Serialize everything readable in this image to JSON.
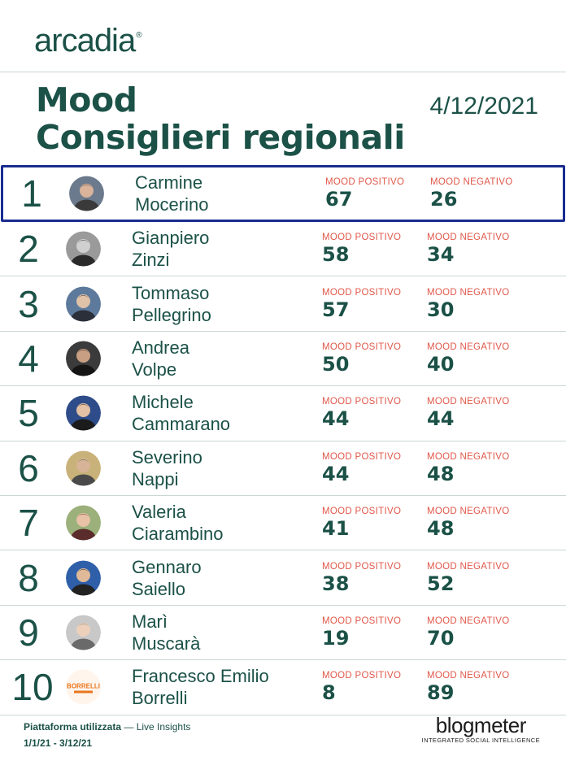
{
  "brand": {
    "name": "arcadia",
    "mark": "®"
  },
  "title": {
    "line1": "Mood",
    "line2": "Consiglieri regionali"
  },
  "date": "4/12/2021",
  "labels": {
    "positive": "MOOD POSITIVO",
    "negative": "MOOD NEGATIVO"
  },
  "colors": {
    "primary": "#1b5147",
    "label": "#e0584a",
    "highlight": "#1a2c8f",
    "rule": "#c9d8d4"
  },
  "rows": [
    {
      "rank": "1",
      "first": "Carmine",
      "last": "Mocerino",
      "positive": "67",
      "negative": "26",
      "avatar": "portrait-photo"
    },
    {
      "rank": "2",
      "first": "Gianpiero",
      "last": "Zinzi",
      "positive": "58",
      "negative": "34",
      "avatar": "portrait-photo-bw"
    },
    {
      "rank": "3",
      "first": "Tommaso",
      "last": "Pellegrino",
      "positive": "57",
      "negative": "30",
      "avatar": "portrait-photo"
    },
    {
      "rank": "4",
      "first": "Andrea",
      "last": "Volpe",
      "positive": "50",
      "negative": "40",
      "avatar": "portrait-photo"
    },
    {
      "rank": "5",
      "first": "Michele",
      "last": "Cammarano",
      "positive": "44",
      "negative": "44",
      "avatar": "portrait-photo"
    },
    {
      "rank": "6",
      "first": "Severino",
      "last": "Nappi",
      "positive": "44",
      "negative": "48",
      "avatar": "portrait-photo"
    },
    {
      "rank": "7",
      "first": "Valeria",
      "last": "Ciarambino",
      "positive": "41",
      "negative": "48",
      "avatar": "portrait-photo"
    },
    {
      "rank": "8",
      "first": "Gennaro",
      "last": "Saiello",
      "positive": "38",
      "negative": "52",
      "avatar": "portrait-photo"
    },
    {
      "rank": "9",
      "first": "Marì",
      "last": "Muscarà",
      "positive": "19",
      "negative": "70",
      "avatar": "portrait-photo"
    },
    {
      "rank": "10",
      "first": "Francesco Emilio",
      "last": "Borrelli",
      "positive": "8",
      "negative": "89",
      "avatar": "campaign-logo",
      "logo_text": "BORRELLI"
    }
  ],
  "footer": {
    "platform_label": "Piattaforma utilizzata",
    "platform_sep": " — ",
    "platform_value": "Live Insights",
    "period": "1/1/21 - 3/12/21",
    "partner": "blogmeter",
    "partner_tagline": "INTEGRATED SOCIAL INTELLIGENCE"
  }
}
